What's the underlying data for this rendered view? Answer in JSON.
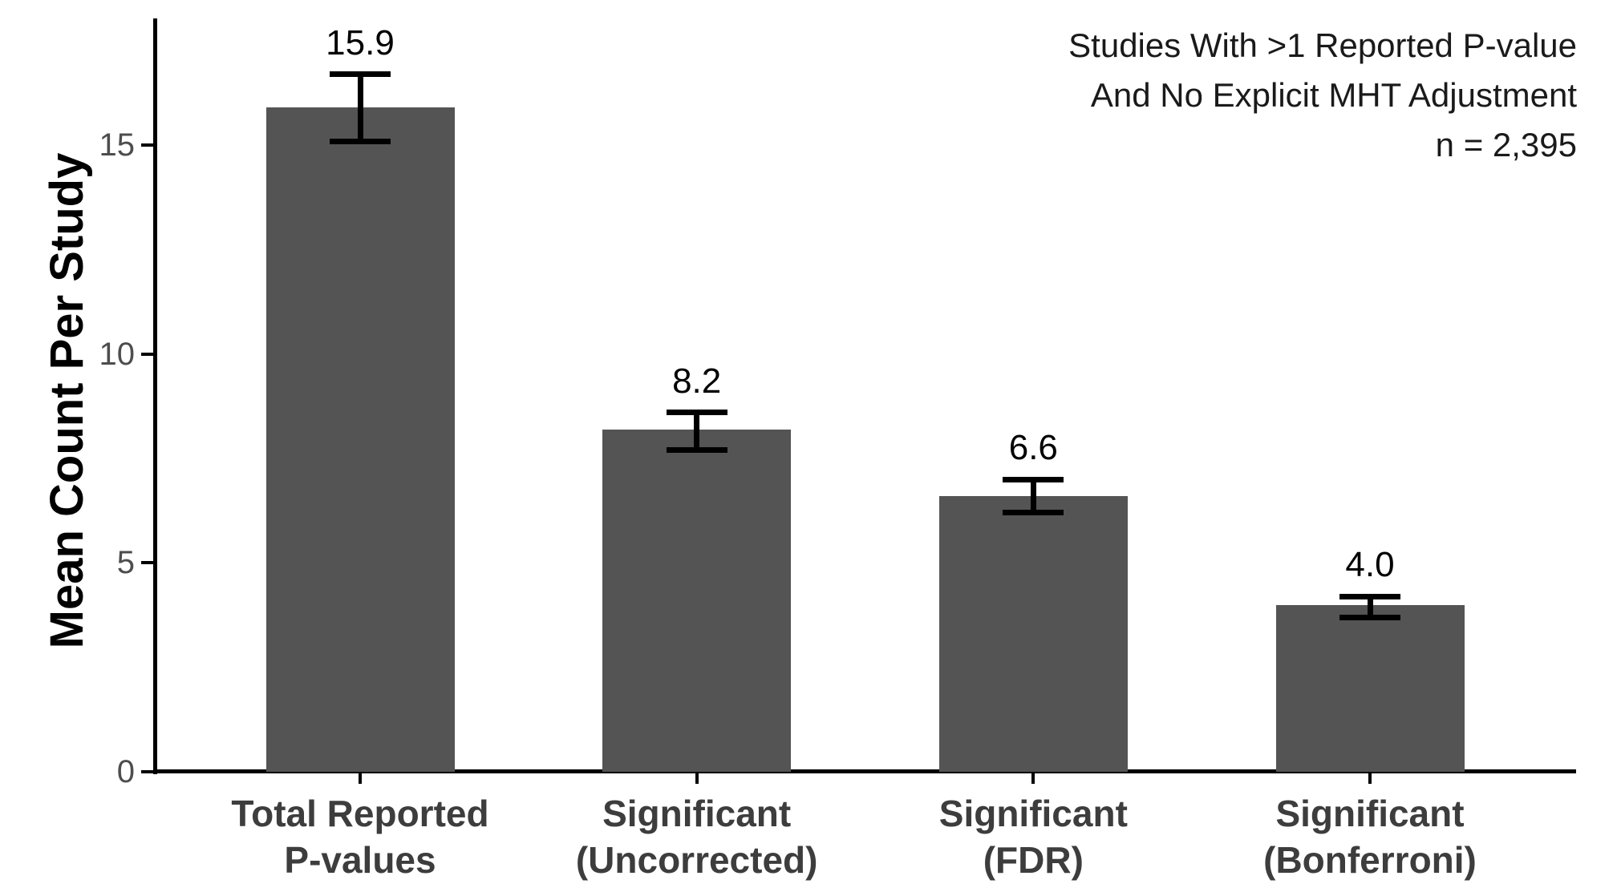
{
  "chart_data": {
    "type": "bar",
    "title": "",
    "annotation_lines": [
      "Studies With >1 Reported P-value",
      "And No Explicit MHT Adjustment",
      "n = 2,395"
    ],
    "ylabel": "Mean Count Per Study",
    "xlabel": "",
    "categories": [
      "Total Reported P-values",
      "Significant (Uncorrected)",
      "Significant (FDR)",
      "Significant (Bonferroni)"
    ],
    "category_lines": [
      [
        "Total Reported",
        "P-values"
      ],
      [
        "Significant",
        "(Uncorrected)"
      ],
      [
        "Significant",
        "(FDR)"
      ],
      [
        "Significant",
        "(Bonferroni)"
      ]
    ],
    "values": [
      15.9,
      8.2,
      6.6,
      4.0
    ],
    "value_labels": [
      "15.9",
      "8.2",
      "6.6",
      "4.0"
    ],
    "error_low": [
      15.1,
      7.7,
      6.2,
      3.7
    ],
    "error_high": [
      16.7,
      8.6,
      7.0,
      4.2
    ],
    "yticks": [
      0,
      5,
      10,
      15
    ],
    "ylim": [
      0,
      18
    ],
    "grid": false,
    "legend": null,
    "colors": {
      "bar_fill": "#545454",
      "axis": "#000000",
      "tick_label": "#4D4D4D",
      "category_label": "#3D3D3D",
      "value_label": "#000000",
      "annotation": "#1A1A1A",
      "background": "#FFFFFF"
    }
  }
}
